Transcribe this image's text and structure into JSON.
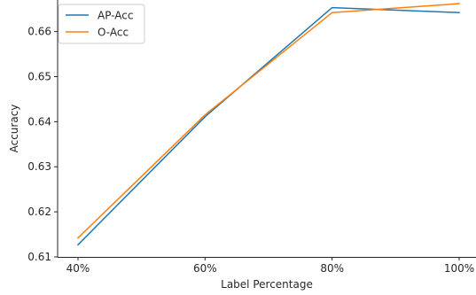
{
  "chart_data": {
    "type": "line",
    "categories": [
      "40%",
      "60%",
      "80%",
      "100%"
    ],
    "series": [
      {
        "name": "AP-Acc",
        "color": "#1f77b4",
        "values": [
          0.6127,
          0.6411,
          0.6653,
          0.6642
        ]
      },
      {
        "name": "O-Acc",
        "color": "#ff7f0e",
        "values": [
          0.6142,
          0.6415,
          0.6642,
          0.6662
        ]
      }
    ],
    "title": "",
    "xlabel": "Label Percentage",
    "ylabel": "Accuracy",
    "ylim": [
      0.61,
      0.667
    ],
    "yticks": [
      "0.61",
      "0.62",
      "0.63",
      "0.64",
      "0.65",
      "0.66"
    ],
    "grid": false,
    "legend": "top-left"
  }
}
